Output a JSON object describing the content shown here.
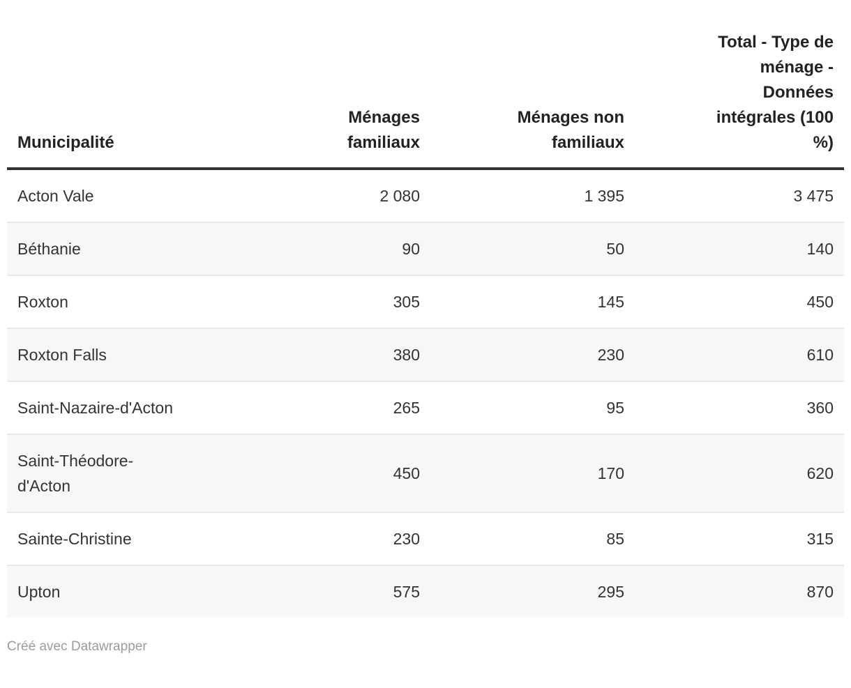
{
  "table": {
    "columns": [
      {
        "key": "municipality",
        "label": "Municipalité",
        "align": "left"
      },
      {
        "key": "menages_familiaux",
        "label": "Ménages\nfamiliaux",
        "align": "right"
      },
      {
        "key": "menages_non_familiaux",
        "label": "Ménages non\nfamiliaux",
        "align": "right"
      },
      {
        "key": "total",
        "label": "Total - Type de\nménage -\nDonnées\nintégrales (100\n%)",
        "align": "right"
      }
    ],
    "rows": [
      {
        "municipality": "Acton Vale",
        "menages_familiaux": "2 080",
        "menages_non_familiaux": "1 395",
        "total": "3 475"
      },
      {
        "municipality": "Béthanie",
        "menages_familiaux": "90",
        "menages_non_familiaux": "50",
        "total": "140"
      },
      {
        "municipality": "Roxton",
        "menages_familiaux": "305",
        "menages_non_familiaux": "145",
        "total": "450"
      },
      {
        "municipality": "Roxton Falls",
        "menages_familiaux": "380",
        "menages_non_familiaux": "230",
        "total": "610"
      },
      {
        "municipality": "Saint-Nazaire-d'Acton",
        "menages_familiaux": "265",
        "menages_non_familiaux": "95",
        "total": "360"
      },
      {
        "municipality": "Saint-Théodore-\nd'Acton",
        "menages_familiaux": "450",
        "menages_non_familiaux": "170",
        "total": "620"
      },
      {
        "municipality": "Sainte-Christine",
        "menages_familiaux": "230",
        "menages_non_familiaux": "85",
        "total": "315"
      },
      {
        "municipality": "Upton",
        "menages_familiaux": "575",
        "menages_non_familiaux": "295",
        "total": "870"
      }
    ]
  },
  "footer": {
    "attribution": "Créé avec Datawrapper"
  },
  "colors": {
    "header_text": "#222222",
    "header_rule": "#333333",
    "body_text": "#333333",
    "row_separator": "#e8e8e8",
    "stripe_background": "#f7f7f7",
    "attribution_text": "#9c9c9c",
    "page_background": "#ffffff"
  },
  "chart_data": {
    "type": "table",
    "title": "",
    "columns": [
      "Municipalité",
      "Ménages familiaux",
      "Ménages non familiaux",
      "Total - Type de ménage - Données intégrales (100 %)"
    ],
    "categories": [
      "Acton Vale",
      "Béthanie",
      "Roxton",
      "Roxton Falls",
      "Saint-Nazaire-d'Acton",
      "Saint-Théodore-d'Acton",
      "Sainte-Christine",
      "Upton"
    ],
    "series": [
      {
        "name": "Ménages familiaux",
        "values": [
          2080,
          90,
          305,
          380,
          265,
          450,
          230,
          575
        ]
      },
      {
        "name": "Ménages non familiaux",
        "values": [
          1395,
          50,
          145,
          230,
          95,
          170,
          85,
          295
        ]
      },
      {
        "name": "Total - Type de ménage - Données intégrales (100 %)",
        "values": [
          3475,
          140,
          450,
          610,
          360,
          620,
          315,
          870
        ]
      }
    ],
    "layout_hints": {
      "striped_rows": true,
      "header_rule": true,
      "number_format": "space thousands separator"
    }
  }
}
